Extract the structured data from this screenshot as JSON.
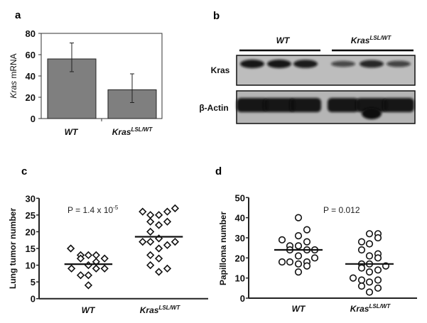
{
  "panel_labels": {
    "a": "a",
    "b": "b",
    "c": "c",
    "d": "d"
  },
  "genotypes": {
    "wt": "WT",
    "kras_base": "Kras",
    "kras_sup": "LSL/WT"
  },
  "chart_data": [
    {
      "panel": "a",
      "type": "bar",
      "ylabel_italic": "Kras",
      "ylabel_rest": " mRNA",
      "ylim": [
        0,
        80
      ],
      "yticks": [
        "0",
        "20",
        "40",
        "60",
        "80"
      ],
      "categories": [
        "WT",
        "Kras LSL/WT"
      ],
      "values": [
        56,
        27
      ],
      "error_low": [
        44,
        15
      ],
      "error_high": [
        71,
        42
      ],
      "bar_color": "#7f7f7f"
    },
    {
      "panel": "b",
      "type": "western-blot",
      "rows": [
        "Kras",
        "β-Actin"
      ],
      "groups": [
        "WT",
        "Kras LSL/WT"
      ],
      "lanes_per_group": 3,
      "kras_band_intensity": [
        1.0,
        1.0,
        0.95,
        0.55,
        0.85,
        0.6
      ],
      "actin_band_intensity": [
        1,
        1,
        1,
        1,
        1,
        1
      ]
    },
    {
      "panel": "c",
      "type": "scatter",
      "ylabel": "Lung tumor number",
      "ylim": [
        0,
        30
      ],
      "xlim": [
        0.3,
        2.7
      ],
      "yticks": [
        "0",
        "5",
        "10",
        "15",
        "20",
        "25",
        "30"
      ],
      "annotation": {
        "base": "P = 1.4 x 10",
        "exp": "-5"
      },
      "marker": "diamond",
      "series": [
        {
          "name": "WT",
          "mean": 10.3,
          "points": [
            [
              0.75,
              15
            ],
            [
              0.89,
              13
            ],
            [
              0.89,
              12
            ],
            [
              1,
              13
            ],
            [
              1.11,
              13
            ],
            [
              1.23,
              12
            ],
            [
              1.11,
              11
            ],
            [
              1,
              10
            ],
            [
              0.76,
              9
            ],
            [
              1.11,
              9
            ],
            [
              1.23,
              9
            ],
            [
              0.89,
              7
            ],
            [
              1,
              7
            ],
            [
              1,
              4
            ]
          ]
        },
        {
          "name": "Kras LSL/WT",
          "mean": 18.5,
          "points": [
            [
              1.77,
              26
            ],
            [
              1.88,
              25
            ],
            [
              2,
              25
            ],
            [
              2.12,
              26
            ],
            [
              2.23,
              27
            ],
            [
              1.88,
              23
            ],
            [
              2.12,
              23
            ],
            [
              2,
              22
            ],
            [
              1.88,
              20
            ],
            [
              1.77,
              17
            ],
            [
              1.88,
              17
            ],
            [
              2,
              18
            ],
            [
              2.23,
              17
            ],
            [
              2.12,
              16
            ],
            [
              2,
              15
            ],
            [
              1.88,
              13
            ],
            [
              2,
              12
            ],
            [
              1.88,
              10
            ],
            [
              2.12,
              9
            ],
            [
              2,
              8
            ]
          ]
        }
      ]
    },
    {
      "panel": "d",
      "type": "scatter",
      "ylabel": "Papilloma number",
      "ylim": [
        0,
        50
      ],
      "xlim": [
        0.3,
        2.67
      ],
      "yticks": [
        "0",
        "10",
        "20",
        "30",
        "40",
        "50"
      ],
      "annotation": {
        "base": "P = 0.012",
        "exp": ""
      },
      "marker": "circle",
      "series": [
        {
          "name": "WT",
          "mean": 24,
          "points": [
            [
              1,
              40
            ],
            [
              1.12,
              34
            ],
            [
              0.77,
              29
            ],
            [
              1,
              31
            ],
            [
              1.12,
              28
            ],
            [
              0.88,
              26
            ],
            [
              1,
              26
            ],
            [
              0.88,
              24
            ],
            [
              1.12,
              24
            ],
            [
              1.23,
              24
            ],
            [
              1,
              21
            ],
            [
              1.23,
              20
            ],
            [
              0.77,
              18
            ],
            [
              0.88,
              18
            ],
            [
              1.12,
              18
            ],
            [
              1,
              17
            ],
            [
              1.12,
              16
            ],
            [
              1,
              13
            ]
          ]
        },
        {
          "name": "Kras LSL/WT",
          "mean": 17,
          "points": [
            [
              2,
              32
            ],
            [
              2.12,
              32
            ],
            [
              2.12,
              30
            ],
            [
              1.89,
              28
            ],
            [
              2,
              27
            ],
            [
              1.89,
              24
            ],
            [
              2.12,
              22
            ],
            [
              2,
              21
            ],
            [
              2.12,
              20
            ],
            [
              1.89,
              17
            ],
            [
              2,
              17
            ],
            [
              2.23,
              16
            ],
            [
              1.89,
              15
            ],
            [
              2.12,
              14
            ],
            [
              2,
              13
            ],
            [
              1.77,
              10
            ],
            [
              1.89,
              9
            ],
            [
              2.12,
              9
            ],
            [
              2,
              8
            ],
            [
              1.89,
              6
            ],
            [
              2.12,
              5
            ],
            [
              2,
              3
            ]
          ]
        }
      ]
    }
  ]
}
